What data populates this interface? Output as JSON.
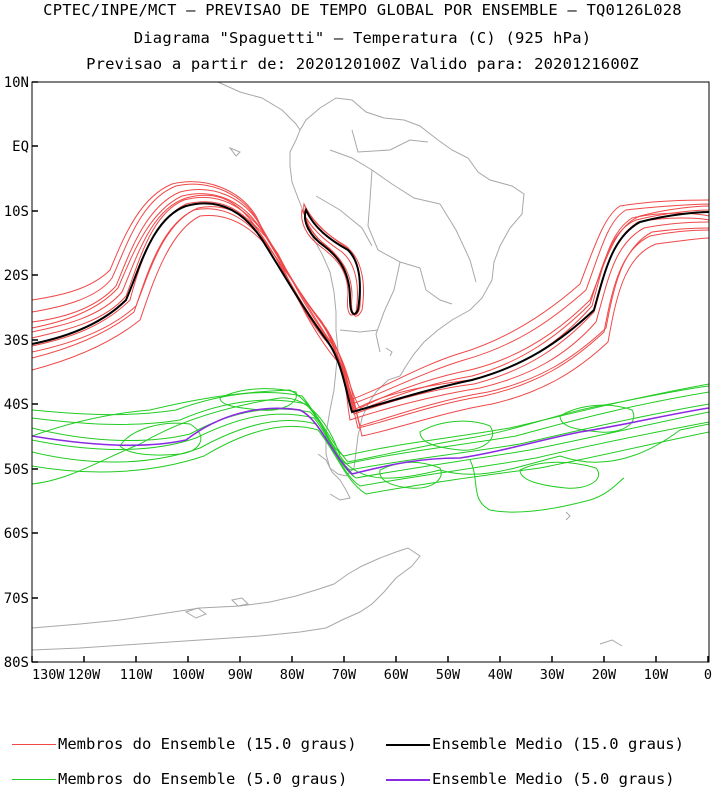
{
  "header": {
    "line1": "CPTEC/INPE/MCT – PREVISAO DE TEMPO GLOBAL POR ENSEMBLE – TQ0126L028",
    "line2": "Diagrama \"Spaguetti\" – Temperatura (C) (925 hPa)",
    "line3": "Previsao a partir de: 2020120100Z  Valido para: 2020121600Z"
  },
  "axes": {
    "lat_labels": [
      "10N",
      "EQ",
      "10S",
      "20S",
      "30S",
      "40S",
      "50S",
      "60S",
      "70S",
      "80S"
    ],
    "lon_labels": [
      "130W",
      "120W",
      "110W",
      "100W",
      "90W",
      "80W",
      "70W",
      "60W",
      "50W",
      "40W",
      "30W",
      "20W",
      "10W",
      "0"
    ]
  },
  "legend": {
    "members_15": "Membros do Ensemble (15.0 graus)",
    "mean_15": "Ensemble Medio (15.0 graus)",
    "members_5": "Membros do Ensemble (5.0 graus)",
    "mean_5": "Ensemble Medio (5.0 graus)"
  },
  "colors": {
    "members_15": "#f04848",
    "mean_15": "#000000",
    "members_5": "#22cc22",
    "mean_5": "#8a2be2",
    "coast": "#a8a8a8"
  }
}
